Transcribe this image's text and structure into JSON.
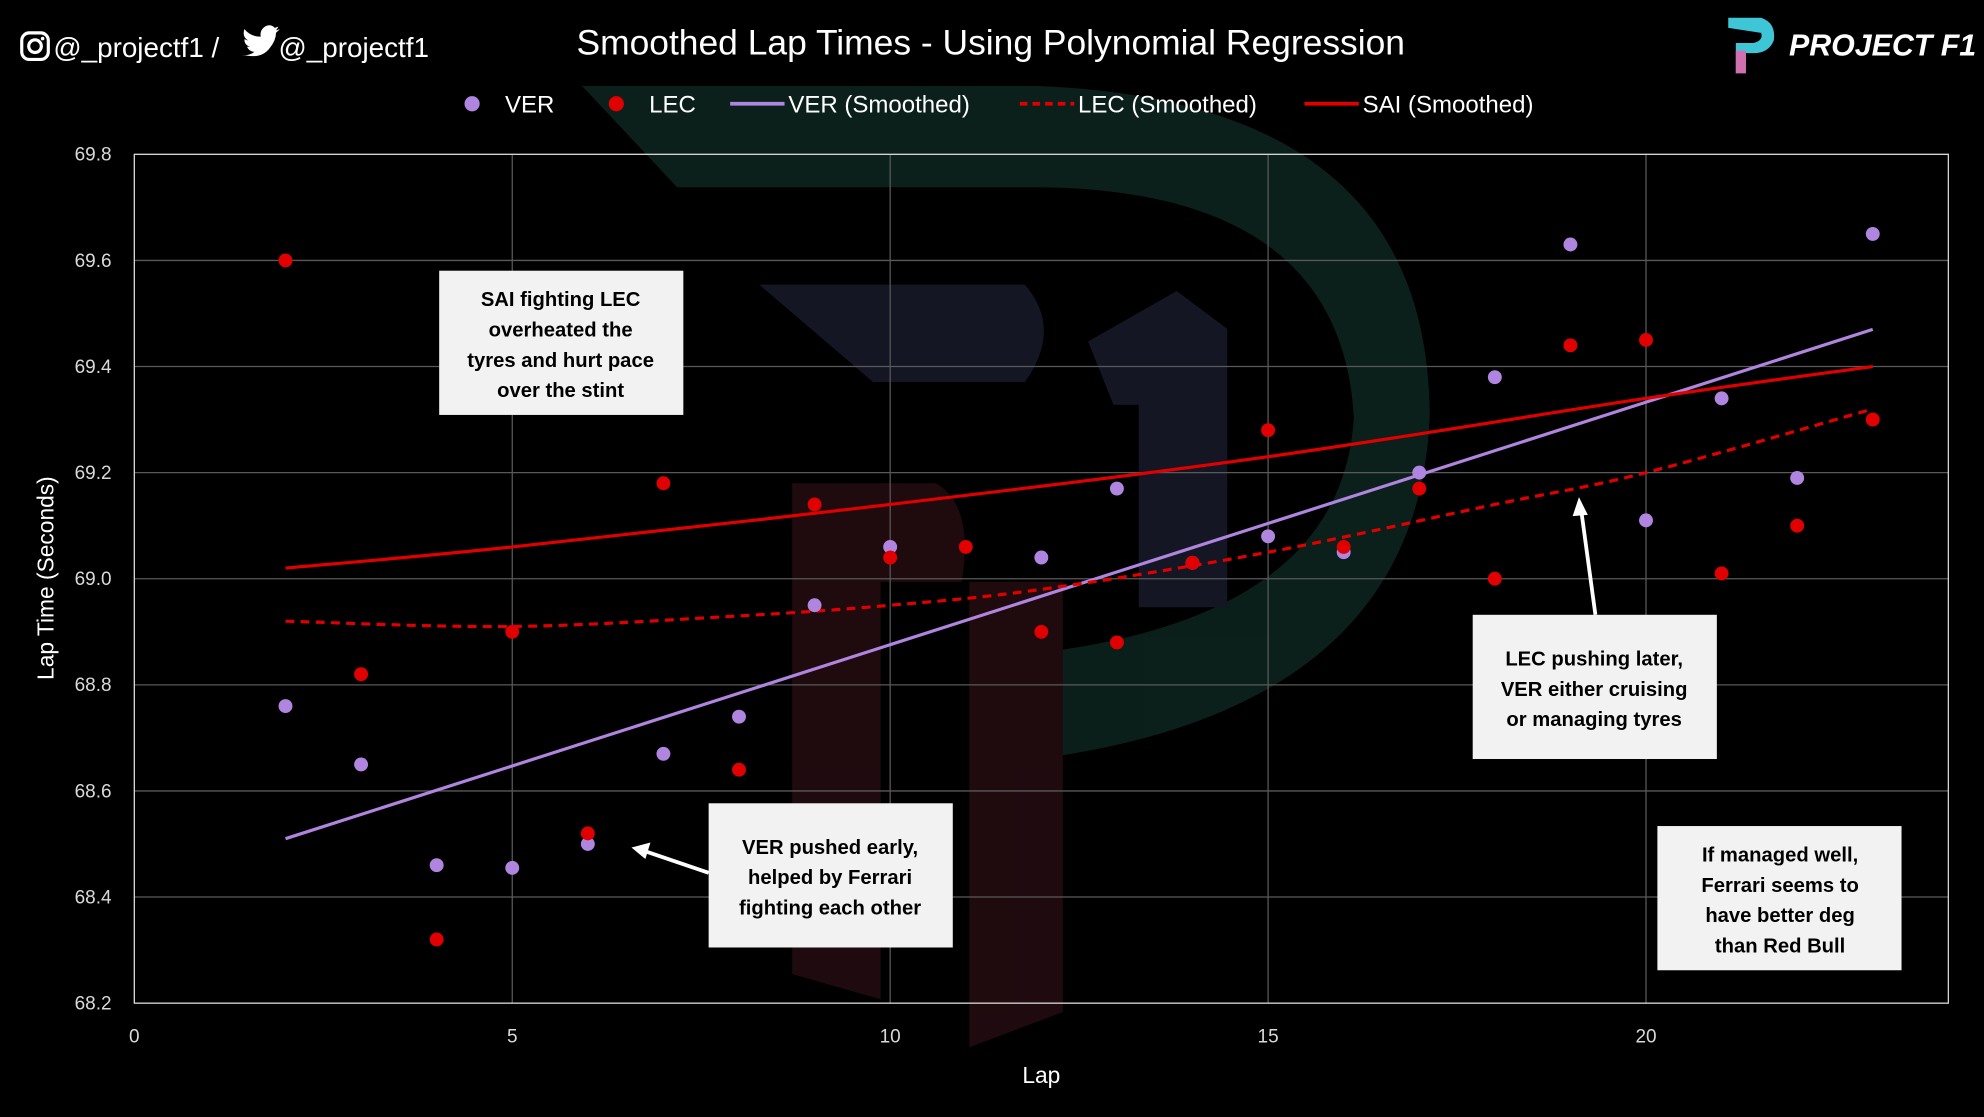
{
  "header": {
    "social": "@_projectf1 / ",
    "social2": "@_projectf1",
    "brand": "PROJECT F1"
  },
  "chart_data": {
    "type": "scatter",
    "title": "Smoothed Lap Times - Using Polynomial Regression",
    "xlabel": "Lap",
    "ylabel": "Lap Time (Seconds)",
    "xlim": [
      0,
      24
    ],
    "ylim": [
      68.2,
      69.8
    ],
    "xticks": [
      0,
      5,
      10,
      15,
      20
    ],
    "yticks": [
      "68.2",
      "68.4",
      "68.6",
      "68.8",
      "69.0",
      "69.2",
      "69.4",
      "69.6",
      "69.8"
    ],
    "grid": true,
    "legend_position": "top",
    "series": [
      {
        "name": "VER",
        "kind": "points",
        "color": "#b085e0",
        "x": [
          2,
          3,
          4,
          5,
          6,
          7,
          8,
          9,
          10,
          12,
          13,
          14,
          15,
          16,
          17,
          18,
          19,
          20,
          21,
          22,
          23
        ],
        "y": [
          68.76,
          68.65,
          68.46,
          68.455,
          68.5,
          68.67,
          68.74,
          68.95,
          69.06,
          69.04,
          69.17,
          69.03,
          69.08,
          69.05,
          69.2,
          69.38,
          69.63,
          69.11,
          69.34,
          69.19,
          69.65
        ]
      },
      {
        "name": "LEC",
        "kind": "points",
        "color": "#e00000",
        "x": [
          2,
          3,
          4,
          5,
          6,
          7,
          8,
          9,
          10,
          11,
          12,
          13,
          14,
          15,
          16,
          17,
          18,
          19,
          20,
          21,
          22,
          23
        ],
        "y": [
          69.6,
          68.82,
          68.32,
          68.9,
          68.52,
          69.18,
          68.64,
          69.14,
          69.04,
          69.06,
          68.9,
          68.88,
          69.03,
          69.28,
          69.06,
          69.17,
          69.0,
          69.44,
          69.45,
          69.01,
          69.1,
          69.3
        ]
      },
      {
        "name": "VER (Smoothed)",
        "kind": "line",
        "color": "#b085e0",
        "dash": false,
        "x": [
          2,
          23
        ],
        "y": [
          68.51,
          69.47
        ]
      },
      {
        "name": "LEC (Smoothed)",
        "kind": "line",
        "color": "#e00000",
        "dash": true,
        "x": [
          2,
          5,
          8,
          10,
          12,
          15,
          18,
          20,
          23
        ],
        "y": [
          68.92,
          68.91,
          68.93,
          68.95,
          68.98,
          69.05,
          69.14,
          69.2,
          69.32
        ]
      },
      {
        "name": "SAI (Smoothed)",
        "kind": "line",
        "color": "#e00000",
        "dash": false,
        "x": [
          2,
          5,
          10,
          15,
          20,
          23
        ],
        "y": [
          69.02,
          69.06,
          69.14,
          69.23,
          69.34,
          69.4
        ]
      }
    ],
    "annotations": [
      {
        "lines": [
          "SAI fighting LEC",
          "overheated the",
          "tyres and hurt pace",
          "over the stint"
        ]
      },
      {
        "lines": [
          "VER pushed early,",
          "helped by Ferrari",
          "fighting each other"
        ]
      },
      {
        "lines": [
          "LEC pushing later,",
          "VER either cruising",
          "or managing tyres"
        ]
      },
      {
        "lines": [
          "If managed well,",
          "Ferrari seems to",
          "have better deg",
          "than Red Bull"
        ]
      }
    ]
  }
}
